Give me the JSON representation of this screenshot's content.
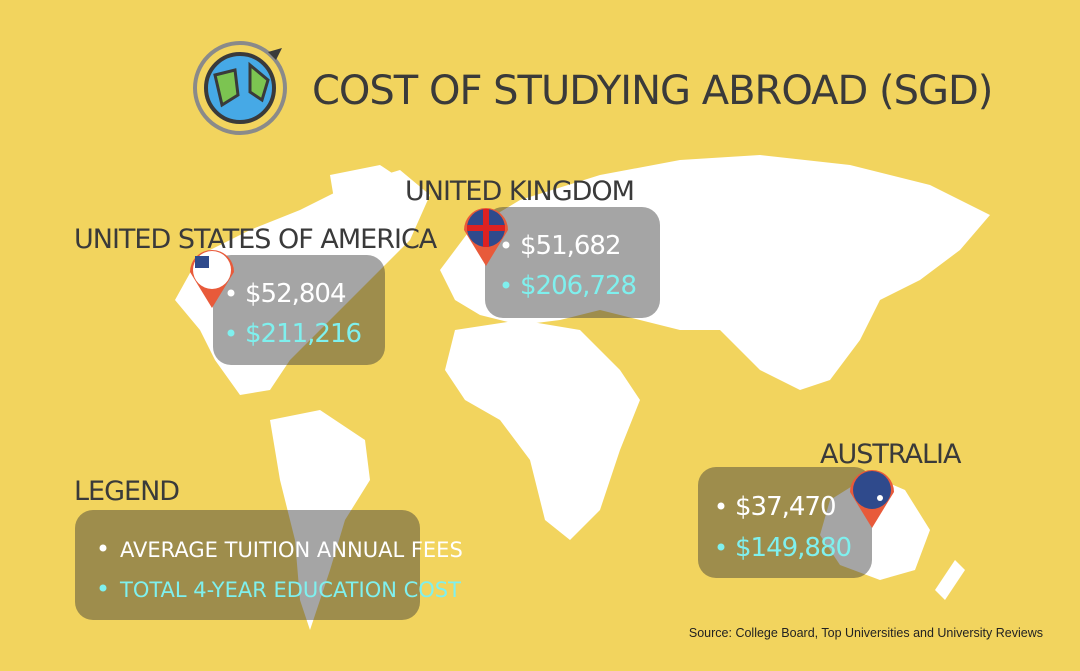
{
  "header": {
    "title": "COST OF STUDYING ABROAD (SGD)"
  },
  "regions": [
    {
      "name": "UNITED STATES OF AMERICA",
      "annual_fee": "$52,804",
      "total_cost": "$211,216"
    },
    {
      "name": "UNITED KINGDOM",
      "annual_fee": "$51,682",
      "total_cost": "$206,728"
    },
    {
      "name": "AUSTRALIA",
      "annual_fee": "$37,470",
      "total_cost": "$149,880"
    }
  ],
  "legend": {
    "title": "LEGEND",
    "items": [
      "AVERAGE TUITION ANNUAL FEES",
      "TOTAL 4-YEAR EDUCATION COST"
    ]
  },
  "source": "Source: College Board, Top Universities and University Reviews"
}
